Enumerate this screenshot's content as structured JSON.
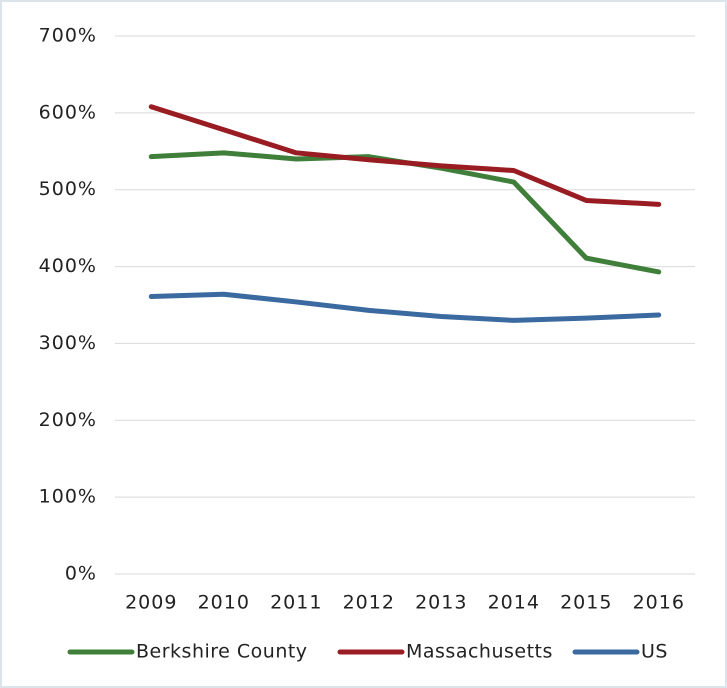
{
  "chart_data": {
    "type": "line",
    "categories": [
      "2009",
      "2010",
      "2011",
      "2012",
      "2013",
      "2014",
      "2015",
      "2016"
    ],
    "series": [
      {
        "name": "Berkshire County",
        "color": "#3f7f3a",
        "values": [
          543,
          548,
          540,
          543,
          528,
          510,
          411,
          393
        ]
      },
      {
        "name": "Massachusetts",
        "color": "#981c22",
        "values": [
          608,
          578,
          548,
          539,
          531,
          525,
          486,
          481
        ]
      },
      {
        "name": "US",
        "color": "#3b6aa0",
        "values": [
          361,
          364,
          354,
          343,
          335,
          330,
          333,
          337
        ]
      }
    ],
    "ylim": [
      0,
      700
    ],
    "yticks": [
      {
        "value": 0,
        "label": "0%"
      },
      {
        "value": 100,
        "label": "100%"
      },
      {
        "value": 200,
        "label": "200%"
      },
      {
        "value": 300,
        "label": "300%"
      },
      {
        "value": 400,
        "label": "400%"
      },
      {
        "value": 500,
        "label": "500%"
      },
      {
        "value": 600,
        "label": "600%"
      },
      {
        "value": 700,
        "label": "700%"
      }
    ],
    "grid": true,
    "legend": "bottom"
  }
}
